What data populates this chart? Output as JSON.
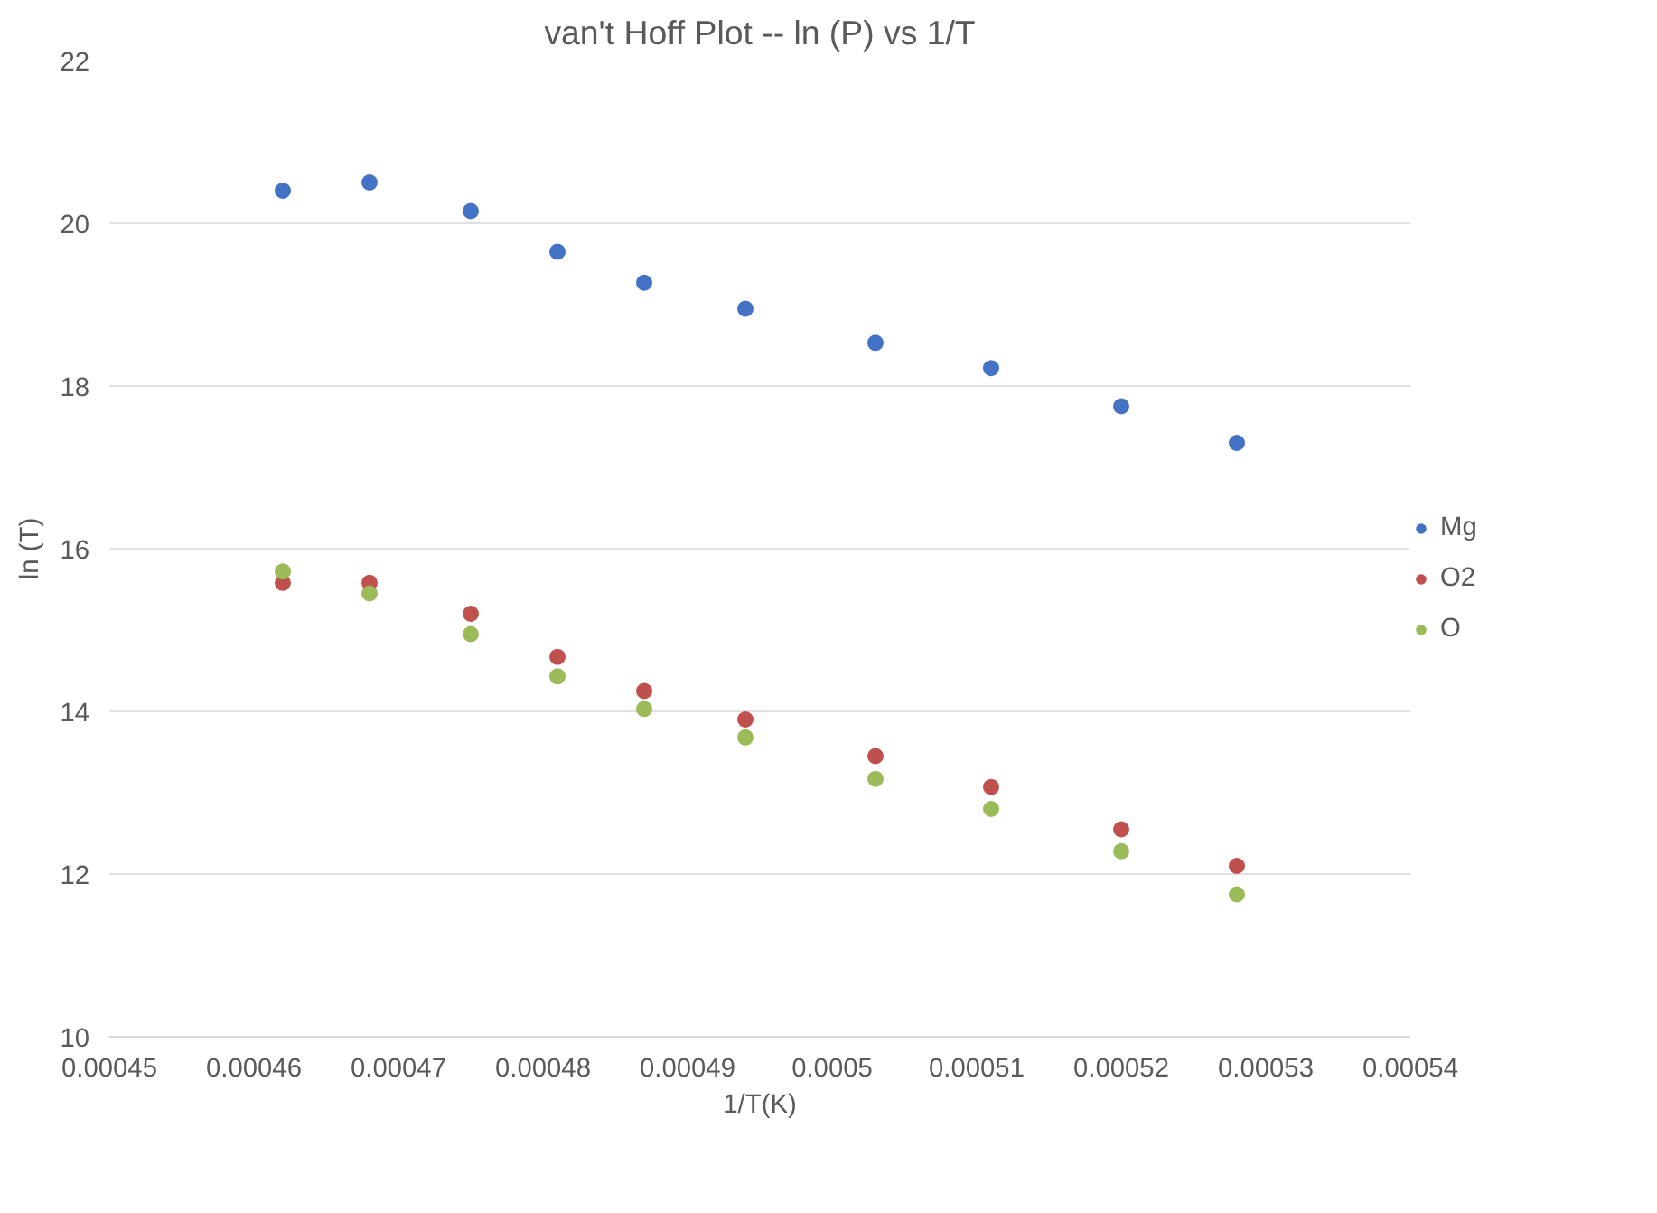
{
  "chart_data": {
    "type": "scatter",
    "title": "van't Hoff Plot -- ln (P) vs 1/T",
    "xlabel": "1/T(K)",
    "ylabel": "ln (T)",
    "x": [
      0.000462,
      0.000468,
      0.000475,
      0.000481,
      0.000487,
      0.000494,
      0.000503,
      0.000511,
      0.00052,
      0.000528
    ],
    "series": [
      {
        "name": "Mg",
        "color": "#4472c4",
        "values": [
          20.4,
          20.5,
          20.15,
          19.65,
          19.27,
          18.95,
          18.53,
          18.22,
          17.75,
          17.3
        ]
      },
      {
        "name": "O2",
        "color": "#c0504d",
        "values": [
          15.58,
          15.58,
          15.2,
          14.67,
          14.25,
          13.9,
          13.45,
          13.07,
          12.55,
          12.1
        ]
      },
      {
        "name": "O",
        "color": "#9bbb59",
        "values": [
          15.72,
          15.45,
          14.95,
          14.43,
          14.03,
          13.68,
          13.17,
          12.8,
          12.28,
          11.75
        ]
      }
    ],
    "xlim": [
      0.00045,
      0.00054
    ],
    "ylim": [
      10,
      22
    ],
    "xticks": [
      0.00045,
      0.00046,
      0.00047,
      0.00048,
      0.00049,
      0.0005,
      0.00051,
      0.00052,
      0.00053,
      0.00054
    ],
    "yticks": [
      10,
      12,
      14,
      16,
      18,
      20,
      22
    ],
    "grid": "y",
    "legend": "right",
    "marker": "circle"
  }
}
